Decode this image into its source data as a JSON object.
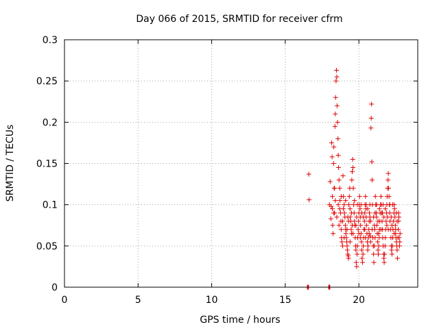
{
  "chart_data": {
    "type": "scatter",
    "title": "Day 066 of 2015, SRMTID for receiver cfrm",
    "xlabel": "GPS time / hours",
    "ylabel": "SRMTID / TECUs",
    "xlim": [
      0,
      24
    ],
    "ylim": [
      0,
      0.3
    ],
    "x_ticks": [
      0,
      5,
      10,
      15,
      20
    ],
    "x_tick_labels": [
      "0",
      "5",
      "10",
      "15",
      "20"
    ],
    "y_ticks": [
      0,
      0.05,
      0.1,
      0.15,
      0.2,
      0.25,
      0.3
    ],
    "y_tick_labels": [
      "0",
      "0.05",
      "0.1",
      "0.15",
      "0.2",
      "0.25",
      "0.3"
    ],
    "grid": true,
    "marker": "plus",
    "color": "#e00000",
    "series": [
      {
        "name": "SRMTID",
        "points": [
          [
            16.5,
            0
          ],
          [
            16.52,
            0
          ],
          [
            16.55,
            0
          ],
          [
            16.58,
            0
          ],
          [
            17.95,
            0
          ],
          [
            17.98,
            0
          ],
          [
            18.0,
            0
          ],
          [
            18.03,
            0
          ],
          [
            16.6,
            0.137
          ],
          [
            16.62,
            0.106
          ],
          [
            18.0,
            0.1
          ],
          [
            18.05,
            0.128
          ],
          [
            18.1,
            0.083
          ],
          [
            18.12,
            0.098
          ],
          [
            18.15,
            0.175
          ],
          [
            18.18,
            0.158
          ],
          [
            18.2,
            0.11
          ],
          [
            18.22,
            0.075
          ],
          [
            18.25,
            0.065
          ],
          [
            18.28,
            0.15
          ],
          [
            18.3,
            0.17
          ],
          [
            18.32,
            0.12
          ],
          [
            18.35,
            0.09
          ],
          [
            18.38,
            0.195
          ],
          [
            18.4,
            0.21
          ],
          [
            18.42,
            0.23
          ],
          [
            18.45,
            0.25
          ],
          [
            18.48,
            0.263
          ],
          [
            18.5,
            0.255
          ],
          [
            18.52,
            0.22
          ],
          [
            18.55,
            0.2
          ],
          [
            18.58,
            0.18
          ],
          [
            18.6,
            0.16
          ],
          [
            18.62,
            0.145
          ],
          [
            18.65,
            0.13
          ],
          [
            18.7,
            0.12
          ],
          [
            18.72,
            0.105
          ],
          [
            18.75,
            0.09
          ],
          [
            18.78,
            0.08
          ],
          [
            18.8,
            0.07
          ],
          [
            18.82,
            0.06
          ],
          [
            18.85,
            0.055
          ],
          [
            18.9,
            0.05
          ],
          [
            18.92,
            0.135
          ],
          [
            18.95,
            0.11
          ],
          [
            19.0,
            0.1
          ],
          [
            19.02,
            0.09
          ],
          [
            19.05,
            0.085
          ],
          [
            19.08,
            0.075
          ],
          [
            19.1,
            0.07
          ],
          [
            19.12,
            0.065
          ],
          [
            19.15,
            0.06
          ],
          [
            19.18,
            0.055
          ],
          [
            19.2,
            0.05
          ],
          [
            19.22,
            0.045
          ],
          [
            19.25,
            0.04
          ],
          [
            19.28,
            0.038
          ],
          [
            19.3,
            0.035
          ],
          [
            19.32,
            0.1
          ],
          [
            19.35,
            0.11
          ],
          [
            19.38,
            0.12
          ],
          [
            19.4,
            0.095
          ],
          [
            19.42,
            0.085
          ],
          [
            19.45,
            0.08
          ],
          [
            19.48,
            0.07
          ],
          [
            19.5,
            0.065
          ],
          [
            19.52,
            0.13
          ],
          [
            19.55,
            0.14
          ],
          [
            19.58,
            0.155
          ],
          [
            19.6,
            0.145
          ],
          [
            19.62,
            0.12
          ],
          [
            19.65,
            0.1
          ],
          [
            19.68,
            0.09
          ],
          [
            19.7,
            0.08
          ],
          [
            19.72,
            0.075
          ],
          [
            19.75,
            0.06
          ],
          [
            19.78,
            0.05
          ],
          [
            19.8,
            0.045
          ],
          [
            19.82,
            0.03
          ],
          [
            19.85,
            0.025
          ],
          [
            19.88,
            0.04
          ],
          [
            19.9,
            0.05
          ],
          [
            19.92,
            0.06
          ],
          [
            19.95,
            0.07
          ],
          [
            19.98,
            0.08
          ],
          [
            20.0,
            0.09
          ],
          [
            20.02,
            0.1
          ],
          [
            20.05,
            0.11
          ],
          [
            20.08,
            0.095
          ],
          [
            20.1,
            0.085
          ],
          [
            20.12,
            0.075
          ],
          [
            20.15,
            0.065
          ],
          [
            20.18,
            0.055
          ],
          [
            20.2,
            0.045
          ],
          [
            20.22,
            0.035
          ],
          [
            20.25,
            0.03
          ],
          [
            20.28,
            0.04
          ],
          [
            20.3,
            0.05
          ],
          [
            20.32,
            0.06
          ],
          [
            20.35,
            0.07
          ],
          [
            20.38,
            0.08
          ],
          [
            20.4,
            0.09
          ],
          [
            20.42,
            0.1
          ],
          [
            20.45,
            0.11
          ],
          [
            20.48,
            0.095
          ],
          [
            20.5,
            0.085
          ],
          [
            20.52,
            0.075
          ],
          [
            20.55,
            0.065
          ],
          [
            20.58,
            0.055
          ],
          [
            20.6,
            0.045
          ],
          [
            20.62,
            0.05
          ],
          [
            20.65,
            0.06
          ],
          [
            20.68,
            0.07
          ],
          [
            20.7,
            0.08
          ],
          [
            20.72,
            0.09
          ],
          [
            20.75,
            0.1
          ],
          [
            20.78,
            0.062
          ],
          [
            20.8,
            0.055
          ],
          [
            20.82,
            0.193
          ],
          [
            20.84,
            0.205
          ],
          [
            20.86,
            0.222
          ],
          [
            20.88,
            0.152
          ],
          [
            20.9,
            0.13
          ],
          [
            20.92,
            0.1
          ],
          [
            20.95,
            0.06
          ],
          [
            20.98,
            0.05
          ],
          [
            21.0,
            0.04
          ],
          [
            21.02,
            0.03
          ],
          [
            21.05,
            0.05
          ],
          [
            21.08,
            0.07
          ],
          [
            21.1,
            0.09
          ],
          [
            21.12,
            0.11
          ],
          [
            21.15,
            0.1
          ],
          [
            21.18,
            0.09
          ],
          [
            21.2,
            0.085
          ],
          [
            21.22,
            0.075
          ],
          [
            21.25,
            0.065
          ],
          [
            21.28,
            0.055
          ],
          [
            21.3,
            0.045
          ],
          [
            21.32,
            0.04
          ],
          [
            21.35,
            0.05
          ],
          [
            21.38,
            0.06
          ],
          [
            21.4,
            0.07
          ],
          [
            21.42,
            0.08
          ],
          [
            21.45,
            0.09
          ],
          [
            21.48,
            0.1
          ],
          [
            21.5,
            0.11
          ],
          [
            21.52,
            0.1
          ],
          [
            21.55,
            0.09
          ],
          [
            21.58,
            0.08
          ],
          [
            21.6,
            0.07
          ],
          [
            21.62,
            0.06
          ],
          [
            21.65,
            0.05
          ],
          [
            21.68,
            0.04
          ],
          [
            21.7,
            0.035
          ],
          [
            21.72,
            0.03
          ],
          [
            21.75,
            0.04
          ],
          [
            21.78,
            0.05
          ],
          [
            21.8,
            0.06
          ],
          [
            21.82,
            0.07
          ],
          [
            21.85,
            0.08
          ],
          [
            21.88,
            0.09
          ],
          [
            21.9,
            0.1
          ],
          [
            21.92,
            0.11
          ],
          [
            21.95,
            0.12
          ],
          [
            21.98,
            0.13
          ],
          [
            22.0,
            0.138
          ],
          [
            22.02,
            0.12
          ],
          [
            22.05,
            0.11
          ],
          [
            22.08,
            0.1
          ],
          [
            22.1,
            0.09
          ],
          [
            22.12,
            0.08
          ],
          [
            22.15,
            0.07
          ],
          [
            22.18,
            0.06
          ],
          [
            22.2,
            0.05
          ],
          [
            22.22,
            0.045
          ],
          [
            22.25,
            0.04
          ],
          [
            22.28,
            0.05
          ],
          [
            22.3,
            0.06
          ],
          [
            22.32,
            0.07
          ],
          [
            22.35,
            0.08
          ],
          [
            22.38,
            0.09
          ],
          [
            22.4,
            0.1
          ],
          [
            22.42,
            0.095
          ],
          [
            22.45,
            0.085
          ],
          [
            22.48,
            0.075
          ],
          [
            22.5,
            0.065
          ],
          [
            22.52,
            0.06
          ],
          [
            22.55,
            0.055
          ],
          [
            22.58,
            0.05
          ],
          [
            22.6,
            0.045
          ],
          [
            22.62,
            0.035
          ],
          [
            22.65,
            0.06
          ],
          [
            22.68,
            0.07
          ],
          [
            22.7,
            0.08
          ],
          [
            22.72,
            0.085
          ],
          [
            22.74,
            0.06
          ],
          [
            22.76,
            0.05
          ],
          [
            22.78,
            0.055
          ],
          [
            22.8,
            0.065
          ],
          [
            18.3,
            0.09
          ],
          [
            18.6,
            0.1
          ],
          [
            18.9,
            0.08
          ],
          [
            19.2,
            0.07
          ],
          [
            19.5,
            0.09
          ],
          [
            19.8,
            0.075
          ],
          [
            20.1,
            0.06
          ],
          [
            20.4,
            0.07
          ],
          [
            20.7,
            0.065
          ],
          [
            21.0,
            0.085
          ],
          [
            21.3,
            0.08
          ],
          [
            21.6,
            0.09
          ],
          [
            21.9,
            0.075
          ],
          [
            22.2,
            0.085
          ],
          [
            22.5,
            0.07
          ],
          [
            18.4,
            0.105
          ],
          [
            18.7,
            0.095
          ],
          [
            19.0,
            0.06
          ],
          [
            19.3,
            0.08
          ],
          [
            19.6,
            0.065
          ],
          [
            19.9,
            0.1
          ],
          [
            20.2,
            0.09
          ],
          [
            20.5,
            0.1
          ],
          [
            20.8,
            0.08
          ],
          [
            21.1,
            0.06
          ],
          [
            21.4,
            0.095
          ],
          [
            21.7,
            0.085
          ],
          [
            22.0,
            0.07
          ],
          [
            22.3,
            0.1
          ],
          [
            22.6,
            0.08
          ],
          [
            18.2,
            0.095
          ],
          [
            18.5,
            0.085
          ],
          [
            18.8,
            0.11
          ],
          [
            19.1,
            0.105
          ],
          [
            19.4,
            0.055
          ],
          [
            19.7,
            0.105
          ],
          [
            20.0,
            0.065
          ],
          [
            20.3,
            0.085
          ],
          [
            20.6,
            0.095
          ],
          [
            20.9,
            0.07
          ],
          [
            21.2,
            0.1
          ],
          [
            21.5,
            0.07
          ],
          [
            21.8,
            0.095
          ],
          [
            22.1,
            0.1
          ],
          [
            22.4,
            0.065
          ],
          [
            22.7,
            0.09
          ],
          [
            18.35,
            0.12
          ],
          [
            18.65,
            0.075
          ],
          [
            18.95,
            0.095
          ],
          [
            19.25,
            0.085
          ],
          [
            19.55,
            0.075
          ],
          [
            19.85,
            0.085
          ],
          [
            20.15,
            0.1
          ],
          [
            20.45,
            0.06
          ],
          [
            20.75,
            0.085
          ],
          [
            21.05,
            0.075
          ],
          [
            21.35,
            0.065
          ],
          [
            21.65,
            0.1
          ],
          [
            21.95,
            0.085
          ],
          [
            22.25,
            0.075
          ],
          [
            22.55,
            0.09
          ]
        ]
      }
    ]
  }
}
